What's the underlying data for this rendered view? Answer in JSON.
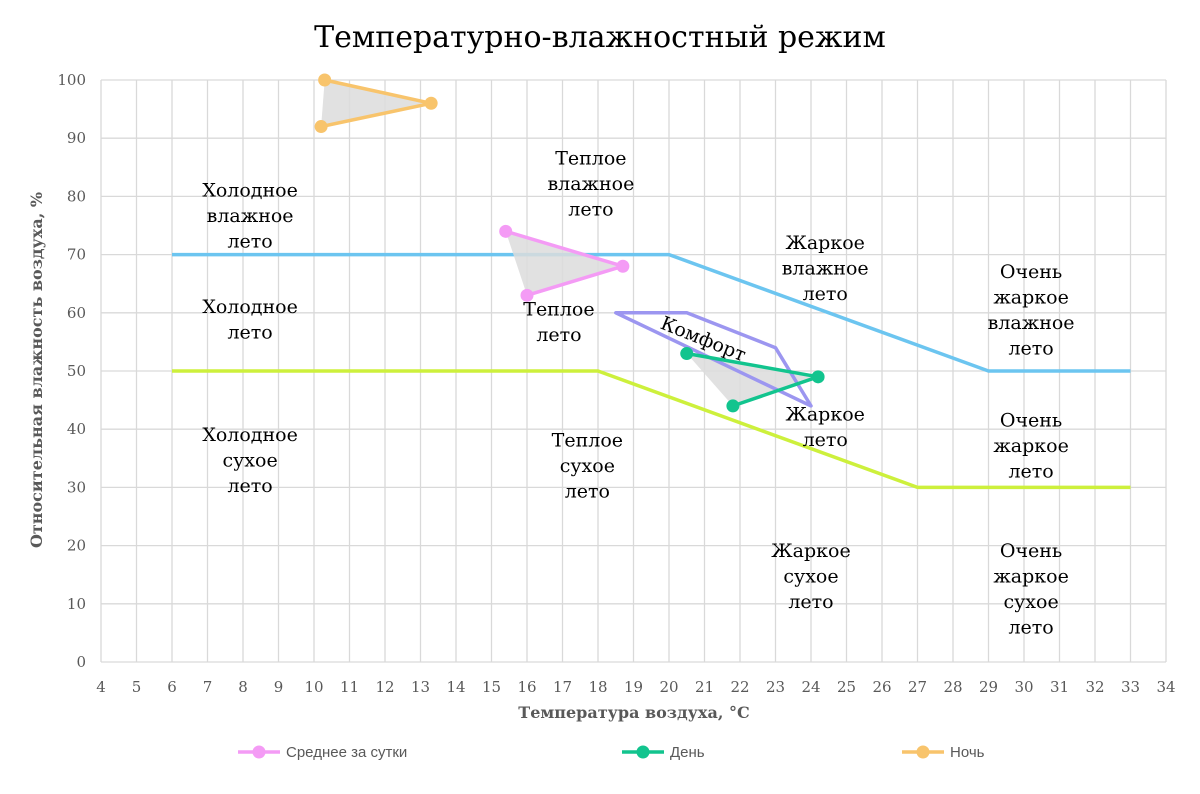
{
  "chart_data": {
    "type": "scatter",
    "title": "Температурно-влажностный режим",
    "xlabel": "Температура воздуха, °C",
    "ylabel": "Относительная влажность воздуха, %",
    "xlim": [
      4,
      34
    ],
    "ylim": [
      0,
      100
    ],
    "x_ticks": [
      4,
      5,
      6,
      7,
      8,
      9,
      10,
      11,
      12,
      13,
      14,
      15,
      16,
      17,
      18,
      19,
      20,
      21,
      22,
      23,
      24,
      25,
      26,
      27,
      28,
      29,
      30,
      31,
      32,
      33,
      34
    ],
    "y_ticks": [
      0,
      10,
      20,
      30,
      40,
      50,
      60,
      70,
      80,
      90,
      100
    ],
    "grid": true,
    "legend_position": "bottom",
    "series": [
      {
        "name": "Среднее за сутки",
        "color": "#F49BF5",
        "points": [
          [
            15.4,
            74
          ],
          [
            18.7,
            68
          ],
          [
            16,
            63
          ]
        ]
      },
      {
        "name": "День",
        "color": "#12C48E",
        "points": [
          [
            20.5,
            53
          ],
          [
            24.2,
            49
          ],
          [
            21.8,
            44
          ]
        ]
      },
      {
        "name": "Ночь",
        "color": "#F8C46C",
        "points": [
          [
            10.3,
            100
          ],
          [
            13.3,
            96
          ],
          [
            10.2,
            92
          ]
        ]
      }
    ],
    "boundaries": [
      {
        "color": "#6CC5F0",
        "points": [
          [
            6,
            70
          ],
          [
            20,
            70
          ],
          [
            29,
            50
          ],
          [
            33,
            50
          ]
        ]
      },
      {
        "color": "#CDF03C",
        "points": [
          [
            6,
            50
          ],
          [
            18,
            50
          ],
          [
            27,
            30
          ],
          [
            33,
            30
          ]
        ]
      }
    ],
    "comfort_zone": {
      "label": "Комфорт",
      "color": "#9C96F0",
      "points": [
        [
          18.5,
          60
        ],
        [
          20.5,
          60
        ],
        [
          23,
          54
        ],
        [
          24,
          44
        ]
      ]
    },
    "zones": [
      {
        "lines": [
          "Холодное",
          "влажное",
          "лето"
        ],
        "x": 8.2,
        "y": 80
      },
      {
        "lines": [
          "Холодное",
          "лето"
        ],
        "x": 8.2,
        "y": 60
      },
      {
        "lines": [
          "Холодное",
          "сухое",
          "лето"
        ],
        "x": 8.2,
        "y": 38
      },
      {
        "lines": [
          "Теплое",
          "влажное",
          "лето"
        ],
        "x": 17.8,
        "y": 85.5
      },
      {
        "lines": [
          "Теплое",
          "лето"
        ],
        "x": 16.9,
        "y": 59.5
      },
      {
        "lines": [
          "Теплое",
          "сухое",
          "лето"
        ],
        "x": 17.7,
        "y": 37
      },
      {
        "lines": [
          "Жаркое",
          "влажное",
          "лето"
        ],
        "x": 24.4,
        "y": 71
      },
      {
        "lines": [
          "Жаркое",
          "лето"
        ],
        "x": 24.4,
        "y": 41.5
      },
      {
        "lines": [
          "Жаркое",
          "сухое",
          "лето"
        ],
        "x": 24.0,
        "y": 18
      },
      {
        "lines": [
          "Очень",
          "жаркое",
          "влажное",
          "лето"
        ],
        "x": 30.2,
        "y": 66
      },
      {
        "lines": [
          "Очень",
          "жаркое",
          "лето"
        ],
        "x": 30.2,
        "y": 40.5
      },
      {
        "lines": [
          "Очень",
          "жаркое",
          "сухое",
          "лето"
        ],
        "x": 30.2,
        "y": 18
      }
    ]
  }
}
